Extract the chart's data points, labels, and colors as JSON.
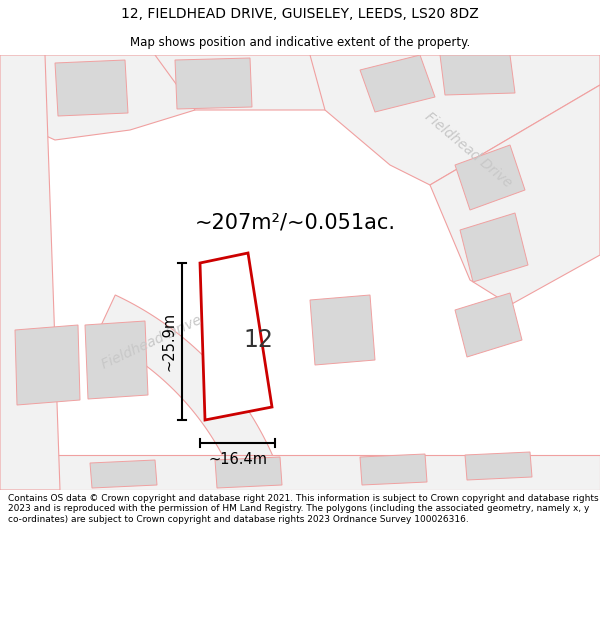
{
  "title_line1": "12, FIELDHEAD DRIVE, GUISELEY, LEEDS, LS20 8DZ",
  "title_line2": "Map shows position and indicative extent of the property.",
  "area_text": "~207m²/~0.051ac.",
  "property_number": "12",
  "dim_vertical": "~25.9m",
  "dim_horizontal": "~16.4m",
  "street_label_lower": "Fieldhead Drive",
  "street_label_upper": "Fieldhead Drive",
  "footer_text": "Contains OS data © Crown copyright and database right 2021. This information is subject to Crown copyright and database rights 2023 and is reproduced with the permission of HM Land Registry. The polygons (including the associated geometry, namely x, y co-ordinates) are subject to Crown copyright and database rights 2023 Ordnance Survey 100026316.",
  "bg_color": "#ffffff",
  "map_bg_color": "#ffffff",
  "road_fill": "#f2f2f2",
  "road_stroke": "#f0a0a0",
  "building_fill": "#d8d8d8",
  "building_stroke": "#f0a0a0",
  "property_stroke": "#cc0000",
  "property_fill": "#ffffff",
  "street_label_color": "#c8c8c8",
  "dim_color": "#000000",
  "title_color": "#000000",
  "area_color": "#000000",
  "footer_color": "#000000"
}
